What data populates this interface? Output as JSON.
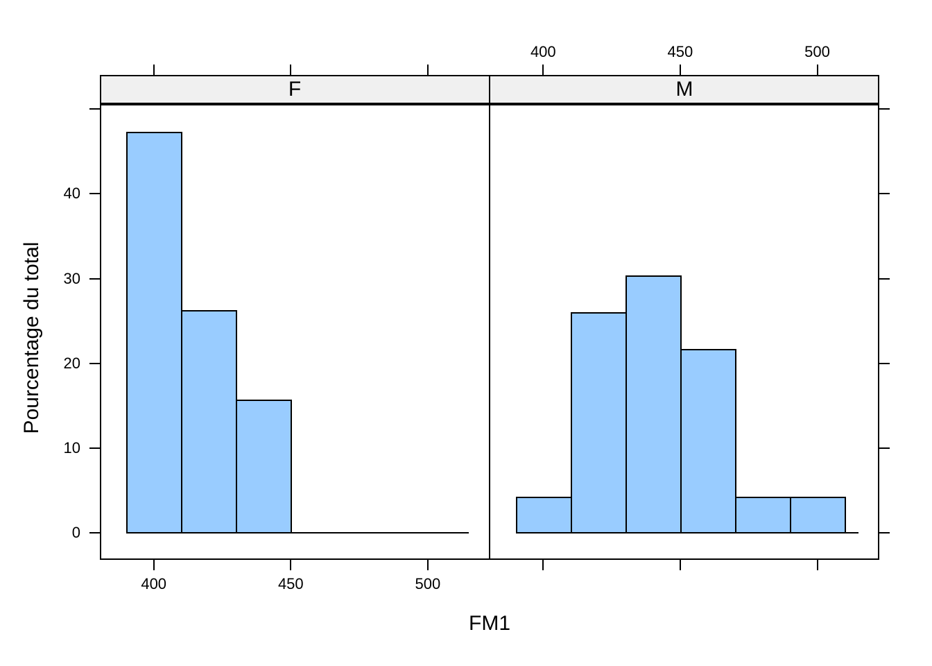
{
  "figure": {
    "background": "#ffffff",
    "kind": "lattice conditioned histogram, 2 panels"
  },
  "chart_data": {
    "type": "bar",
    "subtype": "histogram-percent-of-total",
    "title": "",
    "xlabel": "FM1",
    "ylabel": "Pourcentage du total",
    "panels": [
      {
        "strip_label": "F",
        "bin_start": [
          390,
          410,
          430
        ],
        "bin_end": [
          410,
          430,
          450
        ],
        "percent": [
          47.37,
          26.32,
          15.79
        ],
        "baseline_range": [
          390,
          515
        ]
      },
      {
        "strip_label": "M",
        "bin_start": [
          390,
          410,
          430,
          450,
          470,
          490
        ],
        "bin_end": [
          410,
          430,
          450,
          470,
          490,
          510
        ],
        "percent": [
          4.35,
          26.09,
          30.43,
          21.74,
          4.35,
          4.35
        ],
        "baseline_range": [
          390,
          515
        ]
      }
    ],
    "x_axis": {
      "ticks": [
        400,
        450,
        500
      ],
      "tick_labels": [
        "400",
        "450",
        "500"
      ],
      "labeled_bottom_panel": "F",
      "labeled_top_panel": "M"
    },
    "y_axis": {
      "ticks_drawn": [
        0,
        10,
        20,
        30,
        40,
        50
      ],
      "tick_labels": [
        "0",
        "10",
        "20",
        "30",
        "40"
      ],
      "labeled_side": "left"
    },
    "xlim": [
      380.4,
      522.6
    ],
    "ylim": [
      0,
      50
    ],
    "grid": false,
    "legend": null,
    "colors": {
      "bar_fill": "#99CCFF",
      "bar_border": "#000000",
      "strip_fill": "#F0F0F0",
      "axis_line": "#000000",
      "text": "#000000"
    }
  }
}
